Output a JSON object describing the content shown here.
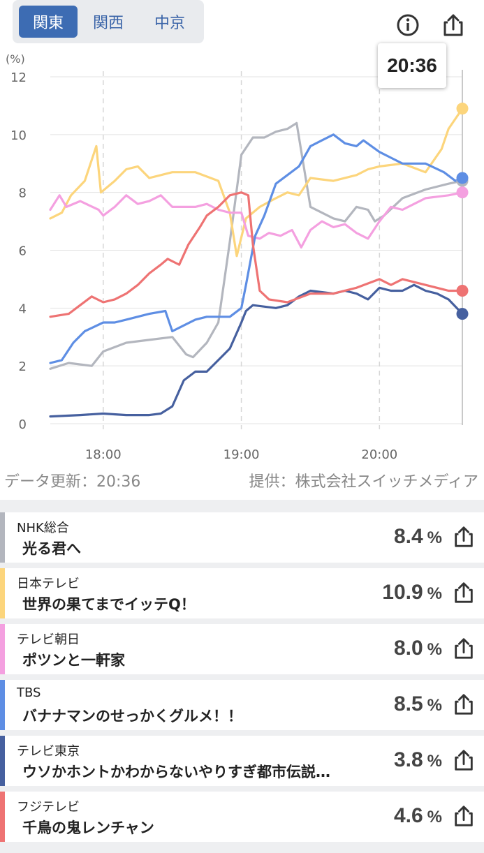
{
  "tabs": [
    {
      "label": "関東",
      "active": true
    },
    {
      "label": "関西",
      "active": false
    },
    {
      "label": "中京",
      "active": false
    }
  ],
  "icons": {
    "info": "info-icon",
    "share": "share-icon"
  },
  "tooltip_time": "20:36",
  "footer": {
    "updated": "データ更新：20:36",
    "source": "提供：株式会社スイッチメディア"
  },
  "chart_data": {
    "type": "line",
    "ylabel": "(%)",
    "ylim": [
      0,
      12
    ],
    "yticks": [
      "0",
      "2",
      "4",
      "6",
      "8",
      "10",
      "12"
    ],
    "xlabel": "",
    "xrange": [
      "17:37",
      "20:36"
    ],
    "xticks": [
      "18:00",
      "19:00",
      "20:00"
    ],
    "grid": true,
    "series": [
      {
        "name": "NHK総合",
        "color": "#b3b6be",
        "points": [
          [
            "17:37",
            1.9
          ],
          [
            "17:45",
            2.1
          ],
          [
            "17:55",
            2.0
          ],
          [
            "18:00",
            2.5
          ],
          [
            "18:10",
            2.8
          ],
          [
            "18:20",
            2.9
          ],
          [
            "18:30",
            3.0
          ],
          [
            "18:36",
            2.4
          ],
          [
            "18:39",
            2.3
          ],
          [
            "18:45",
            2.8
          ],
          [
            "18:50",
            3.5
          ],
          [
            "18:55",
            6.3
          ],
          [
            "19:00",
            9.3
          ],
          [
            "19:05",
            9.9
          ],
          [
            "19:10",
            9.9
          ],
          [
            "19:15",
            10.1
          ],
          [
            "19:20",
            10.2
          ],
          [
            "19:24",
            10.4
          ],
          [
            "19:30",
            7.5
          ],
          [
            "19:40",
            7.1
          ],
          [
            "19:45",
            7.0
          ],
          [
            "19:50",
            7.5
          ],
          [
            "19:55",
            7.4
          ],
          [
            "19:58",
            7.0
          ],
          [
            "20:02",
            7.2
          ],
          [
            "20:10",
            7.8
          ],
          [
            "20:20",
            8.1
          ],
          [
            "20:30",
            8.3
          ],
          [
            "20:36",
            8.4
          ]
        ]
      },
      {
        "name": "日本テレビ",
        "color": "#fcd57c",
        "points": [
          [
            "17:37",
            7.1
          ],
          [
            "17:42",
            7.3
          ],
          [
            "17:46",
            7.9
          ],
          [
            "17:52",
            8.4
          ],
          [
            "17:57",
            9.6
          ],
          [
            "17:59",
            8.0
          ],
          [
            "18:05",
            8.4
          ],
          [
            "18:10",
            8.8
          ],
          [
            "18:15",
            8.9
          ],
          [
            "18:20",
            8.5
          ],
          [
            "18:30",
            8.7
          ],
          [
            "18:40",
            8.7
          ],
          [
            "18:50",
            8.4
          ],
          [
            "18:55",
            7.3
          ],
          [
            "18:58",
            5.8
          ],
          [
            "19:02",
            7.1
          ],
          [
            "19:08",
            7.5
          ],
          [
            "19:15",
            7.8
          ],
          [
            "19:20",
            8.0
          ],
          [
            "19:25",
            7.9
          ],
          [
            "19:30",
            8.5
          ],
          [
            "19:40",
            8.4
          ],
          [
            "19:50",
            8.6
          ],
          [
            "19:55",
            8.8
          ],
          [
            "20:00",
            8.9
          ],
          [
            "20:10",
            9.0
          ],
          [
            "20:20",
            8.7
          ],
          [
            "20:27",
            9.5
          ],
          [
            "20:30",
            10.2
          ],
          [
            "20:36",
            10.9
          ]
        ]
      },
      {
        "name": "テレビ朝日",
        "color": "#f4a0e0",
        "points": [
          [
            "17:37",
            7.4
          ],
          [
            "17:41",
            7.9
          ],
          [
            "17:44",
            7.5
          ],
          [
            "17:50",
            7.7
          ],
          [
            "17:58",
            7.4
          ],
          [
            "18:00",
            7.2
          ],
          [
            "18:05",
            7.5
          ],
          [
            "18:10",
            7.9
          ],
          [
            "18:15",
            7.6
          ],
          [
            "18:20",
            7.7
          ],
          [
            "18:25",
            7.9
          ],
          [
            "18:30",
            7.5
          ],
          [
            "18:40",
            7.5
          ],
          [
            "18:45",
            7.6
          ],
          [
            "18:50",
            7.4
          ],
          [
            "18:55",
            7.3
          ],
          [
            "19:00",
            7.3
          ],
          [
            "19:03",
            6.5
          ],
          [
            "19:08",
            6.4
          ],
          [
            "19:12",
            6.6
          ],
          [
            "19:17",
            6.5
          ],
          [
            "19:22",
            6.7
          ],
          [
            "19:26",
            6.1
          ],
          [
            "19:30",
            6.7
          ],
          [
            "19:35",
            7.0
          ],
          [
            "19:40",
            6.8
          ],
          [
            "19:45",
            6.9
          ],
          [
            "19:50",
            6.6
          ],
          [
            "19:55",
            6.4
          ],
          [
            "20:00",
            7.0
          ],
          [
            "20:05",
            7.5
          ],
          [
            "20:10",
            7.4
          ],
          [
            "20:15",
            7.6
          ],
          [
            "20:20",
            7.8
          ],
          [
            "20:30",
            7.9
          ],
          [
            "20:36",
            8.0
          ]
        ]
      },
      {
        "name": "TBS",
        "color": "#5e8ee4",
        "points": [
          [
            "17:37",
            2.1
          ],
          [
            "17:42",
            2.2
          ],
          [
            "17:47",
            2.8
          ],
          [
            "17:52",
            3.2
          ],
          [
            "18:00",
            3.5
          ],
          [
            "18:05",
            3.5
          ],
          [
            "18:10",
            3.6
          ],
          [
            "18:20",
            3.8
          ],
          [
            "18:27",
            3.9
          ],
          [
            "18:30",
            3.2
          ],
          [
            "18:35",
            3.4
          ],
          [
            "18:40",
            3.6
          ],
          [
            "18:45",
            3.7
          ],
          [
            "18:50",
            3.7
          ],
          [
            "18:55",
            3.7
          ],
          [
            "19:00",
            4.0
          ],
          [
            "19:02",
            4.8
          ],
          [
            "19:06",
            6.5
          ],
          [
            "19:10",
            7.2
          ],
          [
            "19:15",
            8.3
          ],
          [
            "19:20",
            8.6
          ],
          [
            "19:25",
            8.9
          ],
          [
            "19:30",
            9.6
          ],
          [
            "19:35",
            9.8
          ],
          [
            "19:40",
            10.0
          ],
          [
            "19:45",
            9.7
          ],
          [
            "19:50",
            9.6
          ],
          [
            "19:53",
            9.8
          ],
          [
            "20:00",
            9.4
          ],
          [
            "20:05",
            9.2
          ],
          [
            "20:10",
            9.0
          ],
          [
            "20:20",
            9.0
          ],
          [
            "20:28",
            8.7
          ],
          [
            "20:33",
            8.4
          ],
          [
            "20:36",
            8.5
          ]
        ]
      },
      {
        "name": "テレビ東京",
        "color": "#46609f",
        "points": [
          [
            "17:37",
            0.25
          ],
          [
            "17:50",
            0.3
          ],
          [
            "18:00",
            0.35
          ],
          [
            "18:10",
            0.3
          ],
          [
            "18:20",
            0.3
          ],
          [
            "18:25",
            0.35
          ],
          [
            "18:30",
            0.6
          ],
          [
            "18:35",
            1.5
          ],
          [
            "18:40",
            1.8
          ],
          [
            "18:45",
            1.8
          ],
          [
            "18:50",
            2.2
          ],
          [
            "18:55",
            2.6
          ],
          [
            "19:00",
            3.5
          ],
          [
            "19:02",
            3.9
          ],
          [
            "19:05",
            4.1
          ],
          [
            "19:15",
            4.0
          ],
          [
            "19:20",
            4.1
          ],
          [
            "19:25",
            4.4
          ],
          [
            "19:30",
            4.6
          ],
          [
            "19:40",
            4.5
          ],
          [
            "19:45",
            4.6
          ],
          [
            "19:50",
            4.5
          ],
          [
            "19:55",
            4.3
          ],
          [
            "20:00",
            4.7
          ],
          [
            "20:05",
            4.6
          ],
          [
            "20:10",
            4.6
          ],
          [
            "20:15",
            4.8
          ],
          [
            "20:20",
            4.6
          ],
          [
            "20:25",
            4.5
          ],
          [
            "20:30",
            4.3
          ],
          [
            "20:36",
            3.8
          ]
        ]
      },
      {
        "name": "フジテレビ",
        "color": "#ee7373",
        "points": [
          [
            "17:37",
            3.7
          ],
          [
            "17:45",
            3.8
          ],
          [
            "17:50",
            4.1
          ],
          [
            "17:55",
            4.4
          ],
          [
            "18:00",
            4.2
          ],
          [
            "18:05",
            4.3
          ],
          [
            "18:10",
            4.5
          ],
          [
            "18:15",
            4.8
          ],
          [
            "18:20",
            5.2
          ],
          [
            "18:25",
            5.5
          ],
          [
            "18:28",
            5.7
          ],
          [
            "18:33",
            5.5
          ],
          [
            "18:37",
            6.2
          ],
          [
            "18:42",
            6.8
          ],
          [
            "18:45",
            7.2
          ],
          [
            "18:50",
            7.5
          ],
          [
            "18:55",
            7.9
          ],
          [
            "19:00",
            8.0
          ],
          [
            "19:03",
            7.9
          ],
          [
            "19:05",
            6.2
          ],
          [
            "19:08",
            4.6
          ],
          [
            "19:12",
            4.3
          ],
          [
            "19:20",
            4.2
          ],
          [
            "19:30",
            4.5
          ],
          [
            "19:40",
            4.5
          ],
          [
            "19:50",
            4.7
          ],
          [
            "20:00",
            5.0
          ],
          [
            "20:05",
            4.8
          ],
          [
            "20:10",
            5.0
          ],
          [
            "20:15",
            4.9
          ],
          [
            "20:20",
            4.8
          ],
          [
            "20:30",
            4.6
          ],
          [
            "20:36",
            4.6
          ]
        ]
      }
    ]
  },
  "rows": [
    {
      "channel": "NHK総合",
      "program": "光る君へ",
      "value": "8.4",
      "unit": "%",
      "color": "#b3b6be"
    },
    {
      "channel": "日本テレビ",
      "program": "世界の果てまでイッテQ！",
      "value": "10.9",
      "unit": "%",
      "color": "#fcd57c"
    },
    {
      "channel": "テレビ朝日",
      "program": "ポツンと一軒家",
      "value": "8.0",
      "unit": "%",
      "color": "#f4a0e0"
    },
    {
      "channel": "TBS",
      "program": "バナナマンのせっかくグルメ！！",
      "value": "8.5",
      "unit": "%",
      "color": "#5e8ee4"
    },
    {
      "channel": "テレビ東京",
      "program": "ウソかホントかわからないやりすぎ都市伝説…",
      "value": "3.8",
      "unit": "%",
      "color": "#46609f"
    },
    {
      "channel": "フジテレビ",
      "program": "千鳥の鬼レンチャン",
      "value": "4.6",
      "unit": "%",
      "color": "#ee7373"
    }
  ]
}
